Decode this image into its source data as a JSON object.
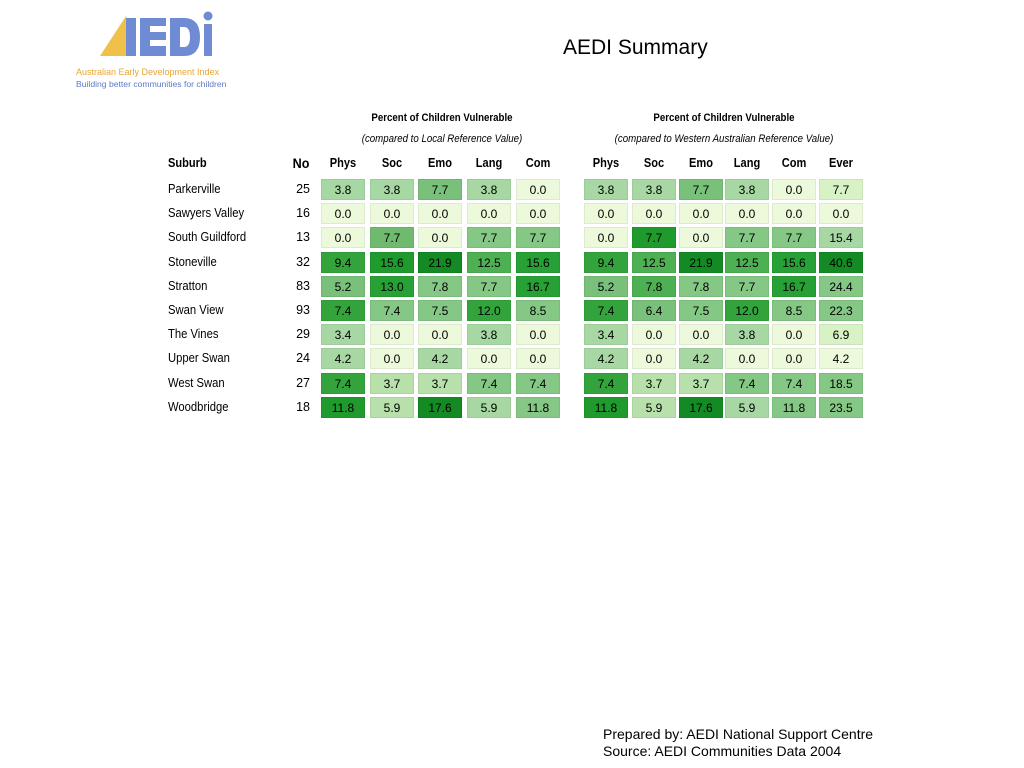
{
  "logo": {
    "name_line": "Australian Early Development Index",
    "tagline": "Building better communities for children",
    "mark_colors": {
      "triangle": "#efc04a",
      "letters": "#6f8bd3"
    }
  },
  "title": "AEDI Summary",
  "group_local": {
    "title": "Percent of Children Vulnerable",
    "subtitle": "(compared to Local Reference Value)"
  },
  "group_wa": {
    "title": "Percent of Children Vulnerable",
    "subtitle": "(compared to Western Australian Reference Value)"
  },
  "columns": {
    "suburb": "Suburb",
    "no": "No",
    "local": [
      "Phys",
      "Soc",
      "Emo",
      "Lang",
      "Com"
    ],
    "wa": [
      "Phys",
      "Soc",
      "Emo",
      "Lang",
      "Com",
      "Ever"
    ]
  },
  "rows": [
    {
      "suburb": "Parkerville",
      "no": "25",
      "local": [
        "3.8",
        "3.8",
        "7.7",
        "3.8",
        "0.0"
      ],
      "local_color": [
        "#a7d8a3",
        "#a7d8a3",
        "#79c07a",
        "#a7d8a3",
        "#ecf9db"
      ],
      "wa": [
        "3.8",
        "3.8",
        "7.7",
        "3.8",
        "0.0",
        "7.7"
      ],
      "wa_color": [
        "#a7d8a3",
        "#a7d8a3",
        "#79c07a",
        "#a7d8a3",
        "#ecf9db",
        "#d8f2c6"
      ]
    },
    {
      "suburb": "Sawyers Valley",
      "no": "16",
      "local": [
        "0.0",
        "0.0",
        "0.0",
        "0.0",
        "0.0"
      ],
      "local_color": [
        "#ecf9db",
        "#ecf9db",
        "#ecf9db",
        "#ecf9db",
        "#ecf9db"
      ],
      "wa": [
        "0.0",
        "0.0",
        "0.0",
        "0.0",
        "0.0",
        "0.0"
      ],
      "wa_color": [
        "#ecf9db",
        "#ecf9db",
        "#ecf9db",
        "#ecf9db",
        "#ecf9db",
        "#ecf9db"
      ]
    },
    {
      "suburb": "South Guildford",
      "no": "13",
      "local": [
        "0.0",
        "7.7",
        "0.0",
        "7.7",
        "7.7"
      ],
      "local_color": [
        "#ecf9db",
        "#6fba6f",
        "#ecf9db",
        "#85c784",
        "#85c784"
      ],
      "wa": [
        "0.0",
        "7.7",
        "0.0",
        "7.7",
        "7.7",
        "15.4"
      ],
      "wa_color": [
        "#ecf9db",
        "#1f9a2c",
        "#ecf9db",
        "#85c784",
        "#85c784",
        "#a7d8a3"
      ]
    },
    {
      "suburb": "Stoneville",
      "no": "32",
      "local": [
        "9.4",
        "15.6",
        "21.9",
        "12.5",
        "15.6"
      ],
      "local_color": [
        "#33a43c",
        "#1f9a2c",
        "#138a24",
        "#4db052",
        "#27a035"
      ],
      "wa": [
        "9.4",
        "12.5",
        "21.9",
        "12.5",
        "15.6",
        "40.6"
      ],
      "wa_color": [
        "#33a43c",
        "#4db052",
        "#138a24",
        "#4db052",
        "#27a035",
        "#138a24"
      ]
    },
    {
      "suburb": "Stratton",
      "no": "83",
      "local": [
        "5.2",
        "13.0",
        "7.8",
        "7.7",
        "16.7"
      ],
      "local_color": [
        "#79c07a",
        "#27a035",
        "#85c784",
        "#85c784",
        "#27a035"
      ],
      "wa": [
        "5.2",
        "7.8",
        "7.8",
        "7.7",
        "16.7",
        "24.4"
      ],
      "wa_color": [
        "#79c07a",
        "#4db052",
        "#85c784",
        "#85c784",
        "#27a035",
        "#85c784"
      ]
    },
    {
      "suburb": "Swan View",
      "no": "93",
      "local": [
        "7.4",
        "7.4",
        "7.5",
        "12.0",
        "8.5"
      ],
      "local_color": [
        "#33a43c",
        "#85c784",
        "#85c784",
        "#33a43c",
        "#85c784"
      ],
      "wa": [
        "7.4",
        "6.4",
        "7.5",
        "12.0",
        "8.5",
        "22.3"
      ],
      "wa_color": [
        "#33a43c",
        "#79c07a",
        "#85c784",
        "#33a43c",
        "#85c784",
        "#85c784"
      ]
    },
    {
      "suburb": "The Vines",
      "no": "29",
      "local": [
        "3.4",
        "0.0",
        "0.0",
        "3.8",
        "0.0"
      ],
      "local_color": [
        "#a7d8a3",
        "#ecf9db",
        "#ecf9db",
        "#a7d8a3",
        "#ecf9db"
      ],
      "wa": [
        "3.4",
        "0.0",
        "0.0",
        "3.8",
        "0.0",
        "6.9"
      ],
      "wa_color": [
        "#a7d8a3",
        "#ecf9db",
        "#ecf9db",
        "#a7d8a3",
        "#ecf9db",
        "#d8f2c6"
      ]
    },
    {
      "suburb": "Upper Swan",
      "no": "24",
      "local": [
        "4.2",
        "0.0",
        "4.2",
        "0.0",
        "0.0"
      ],
      "local_color": [
        "#a7d8a3",
        "#ecf9db",
        "#a7d8a3",
        "#ecf9db",
        "#ecf9db"
      ],
      "wa": [
        "4.2",
        "0.0",
        "4.2",
        "0.0",
        "0.0",
        "4.2"
      ],
      "wa_color": [
        "#a7d8a3",
        "#ecf9db",
        "#a7d8a3",
        "#ecf9db",
        "#ecf9db",
        "#ecf9db"
      ]
    },
    {
      "suburb": "West Swan",
      "no": "27",
      "local": [
        "7.4",
        "3.7",
        "3.7",
        "7.4",
        "7.4"
      ],
      "local_color": [
        "#33a43c",
        "#b8e0ab",
        "#b8e0ab",
        "#85c784",
        "#85c784"
      ],
      "wa": [
        "7.4",
        "3.7",
        "3.7",
        "7.4",
        "7.4",
        "18.5"
      ],
      "wa_color": [
        "#33a43c",
        "#b8e0ab",
        "#b8e0ab",
        "#85c784",
        "#85c784",
        "#85c784"
      ]
    },
    {
      "suburb": "Woodbridge",
      "no": "18",
      "local": [
        "11.8",
        "5.9",
        "17.6",
        "5.9",
        "11.8"
      ],
      "local_color": [
        "#1f9a2c",
        "#b8e0ab",
        "#138a24",
        "#a7d8a3",
        "#85c784"
      ],
      "wa": [
        "11.8",
        "5.9",
        "17.6",
        "5.9",
        "11.8",
        "23.5"
      ],
      "wa_color": [
        "#1f9a2c",
        "#b8e0ab",
        "#138a24",
        "#a7d8a3",
        "#85c784",
        "#85c784"
      ]
    }
  ],
  "footer": {
    "prepared_by": "Prepared by: AEDI National Support Centre",
    "source": "Source: AEDI Communities Data 2004"
  }
}
